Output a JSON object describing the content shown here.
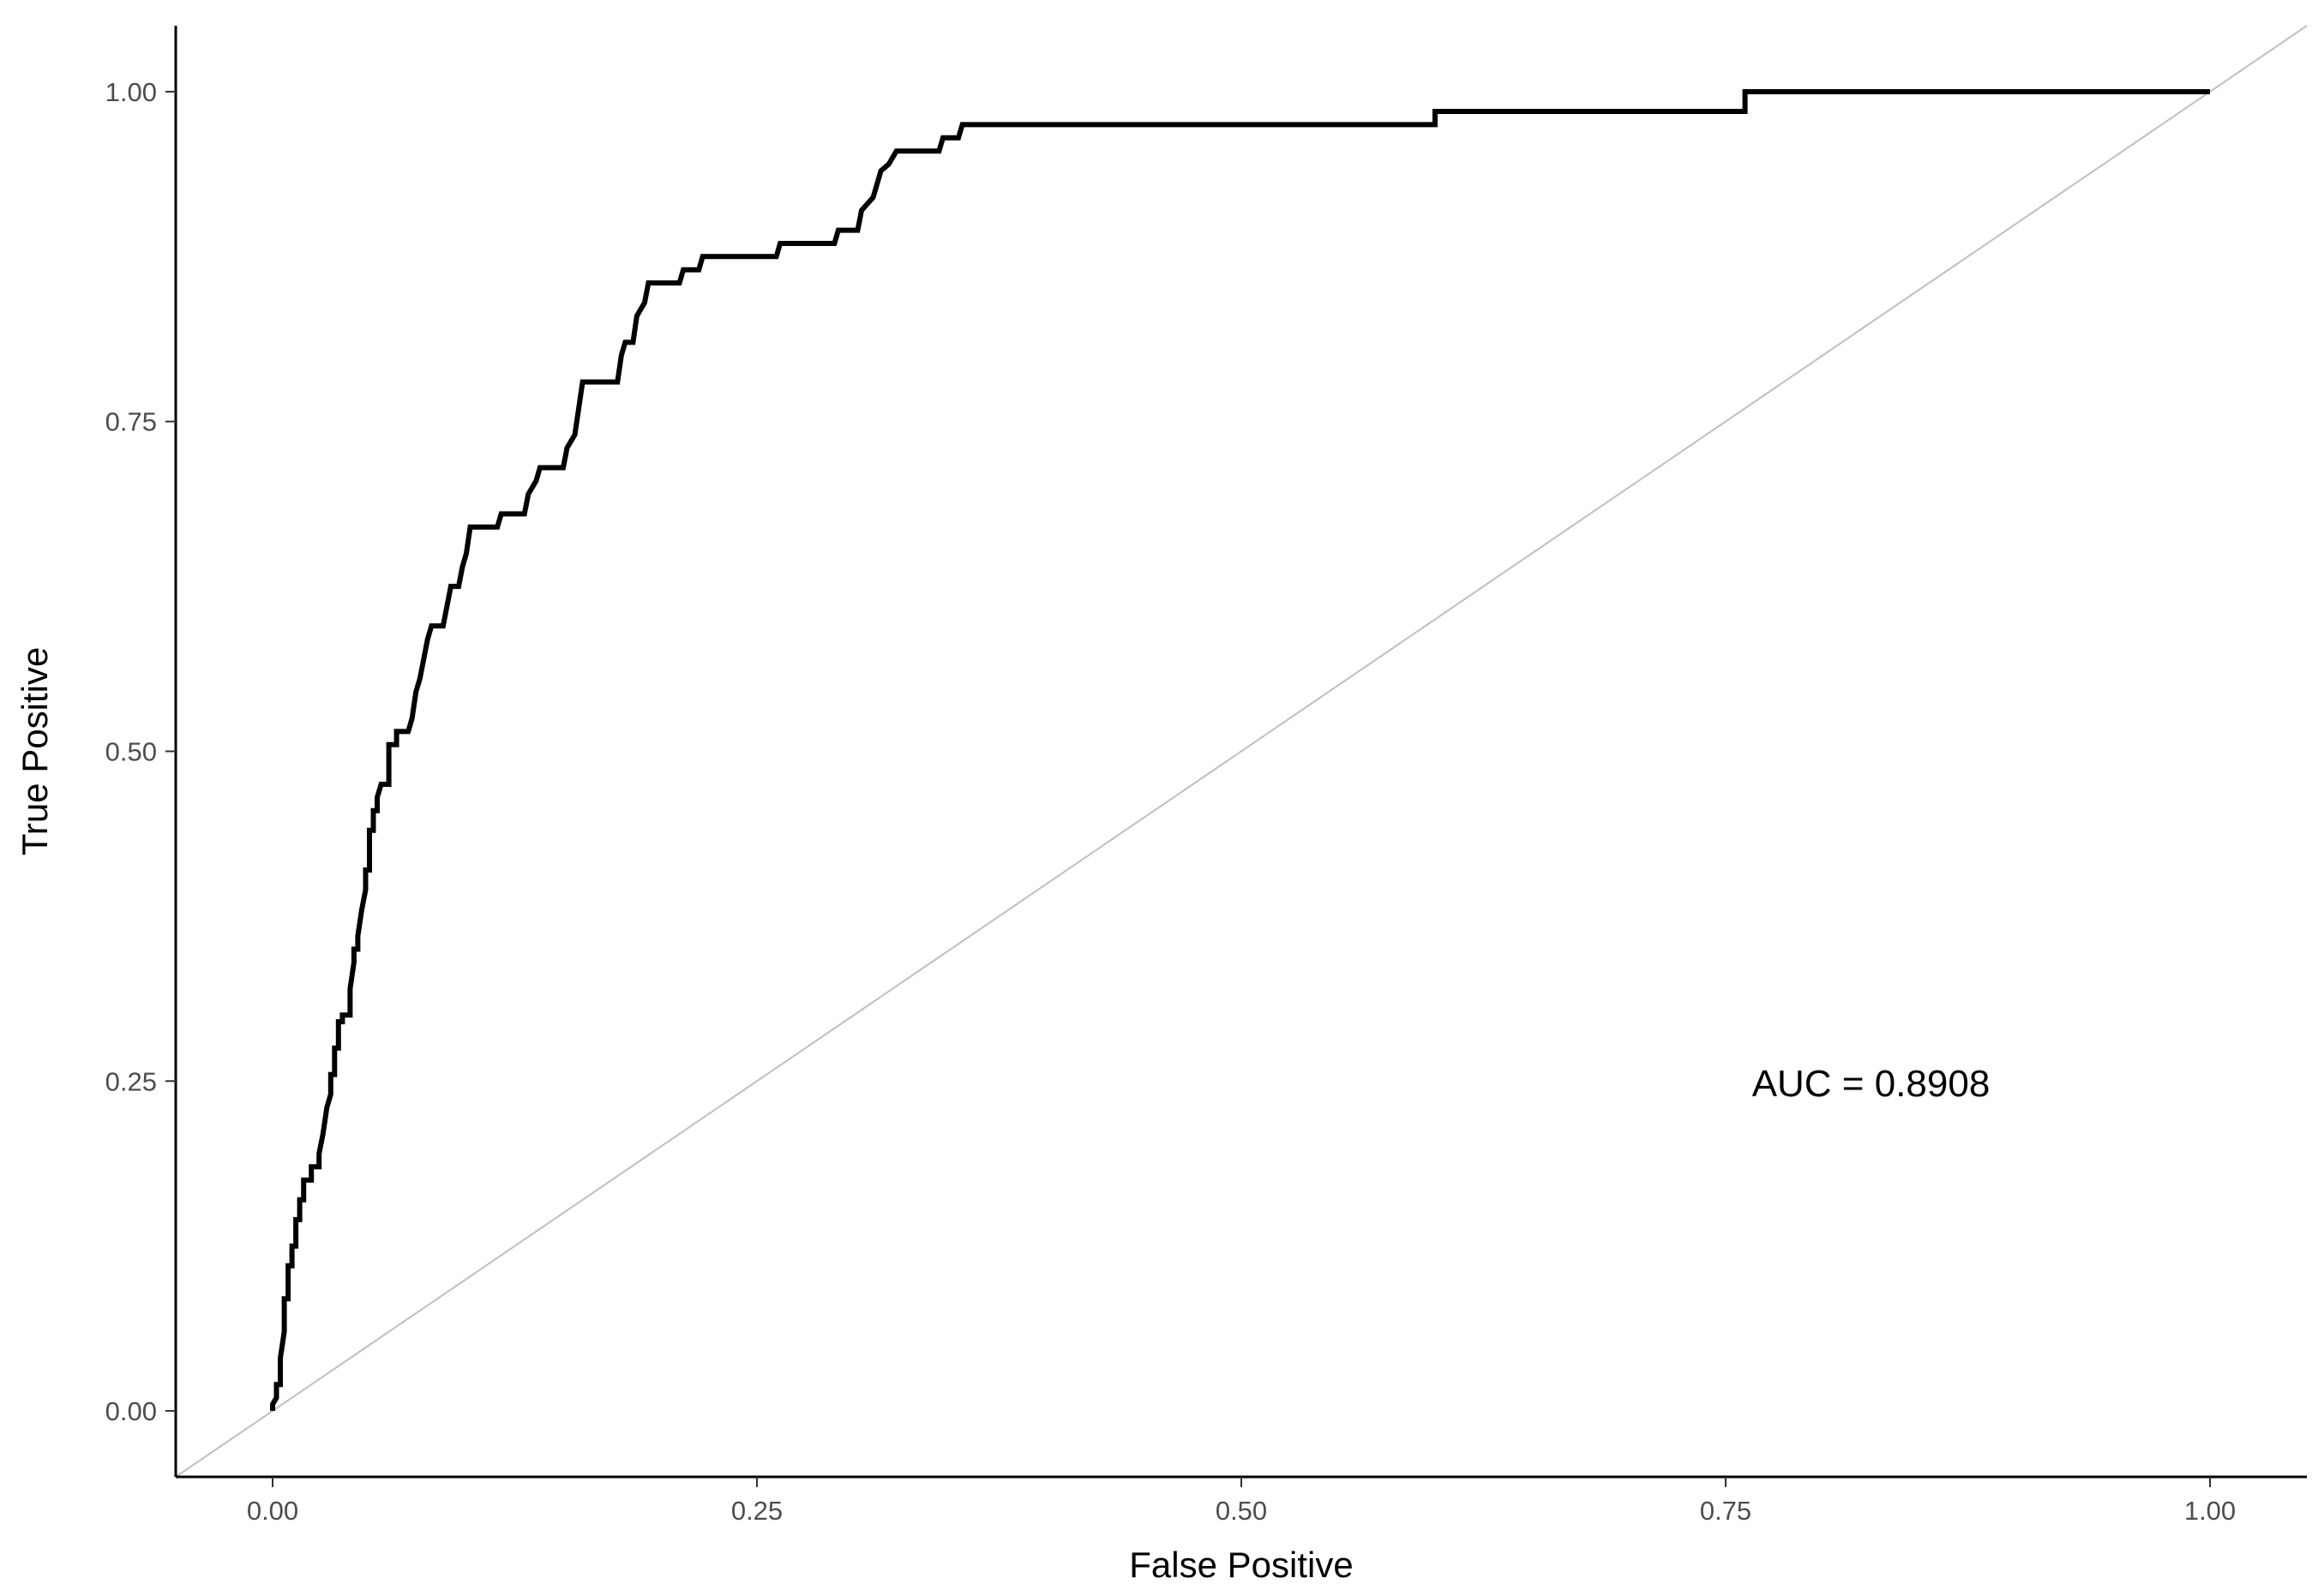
{
  "chart_data": {
    "type": "line",
    "title": "",
    "xlabel": "False Positive",
    "ylabel": "True Positive",
    "xlim": [
      -0.05,
      1.05
    ],
    "ylim": [
      -0.05,
      1.05
    ],
    "x_ticks": [
      {
        "value": 0,
        "label": "0.00"
      },
      {
        "value": 0.25,
        "label": "0.25"
      },
      {
        "value": 0.5,
        "label": "0.50"
      },
      {
        "value": 0.75,
        "label": "0.75"
      },
      {
        "value": 1,
        "label": "1.00"
      }
    ],
    "y_ticks": [
      {
        "value": 0,
        "label": "0.00"
      },
      {
        "value": 0.25,
        "label": "0.25"
      },
      {
        "value": 0.5,
        "label": "0.50"
      },
      {
        "value": 0.75,
        "label": "0.75"
      },
      {
        "value": 1,
        "label": "1.00"
      }
    ],
    "grid": false,
    "legend": "none",
    "series": [
      {
        "color": "#000000",
        "points": [
          [
            0.0,
            0.0
          ],
          [
            0.0,
            0.005
          ],
          [
            0.002,
            0.01
          ],
          [
            0.002,
            0.02
          ],
          [
            0.004,
            0.02
          ],
          [
            0.004,
            0.04
          ],
          [
            0.006,
            0.06
          ],
          [
            0.006,
            0.085
          ],
          [
            0.008,
            0.085
          ],
          [
            0.008,
            0.11
          ],
          [
            0.01,
            0.11
          ],
          [
            0.01,
            0.125
          ],
          [
            0.012,
            0.125
          ],
          [
            0.012,
            0.145
          ],
          [
            0.014,
            0.145
          ],
          [
            0.014,
            0.16
          ],
          [
            0.016,
            0.16
          ],
          [
            0.016,
            0.175
          ],
          [
            0.02,
            0.175
          ],
          [
            0.02,
            0.185
          ],
          [
            0.024,
            0.185
          ],
          [
            0.024,
            0.195
          ],
          [
            0.026,
            0.21
          ],
          [
            0.028,
            0.23
          ],
          [
            0.03,
            0.24
          ],
          [
            0.03,
            0.255
          ],
          [
            0.032,
            0.255
          ],
          [
            0.032,
            0.275
          ],
          [
            0.034,
            0.275
          ],
          [
            0.034,
            0.295
          ],
          [
            0.036,
            0.295
          ],
          [
            0.036,
            0.3
          ],
          [
            0.04,
            0.3
          ],
          [
            0.04,
            0.32
          ],
          [
            0.042,
            0.34
          ],
          [
            0.042,
            0.35
          ],
          [
            0.044,
            0.35
          ],
          [
            0.044,
            0.36
          ],
          [
            0.046,
            0.38
          ],
          [
            0.048,
            0.395
          ],
          [
            0.048,
            0.41
          ],
          [
            0.05,
            0.41
          ],
          [
            0.05,
            0.44
          ],
          [
            0.052,
            0.44
          ],
          [
            0.052,
            0.455
          ],
          [
            0.054,
            0.455
          ],
          [
            0.054,
            0.465
          ],
          [
            0.056,
            0.475
          ],
          [
            0.06,
            0.475
          ],
          [
            0.06,
            0.505
          ],
          [
            0.064,
            0.505
          ],
          [
            0.064,
            0.515
          ],
          [
            0.07,
            0.515
          ],
          [
            0.072,
            0.525
          ],
          [
            0.074,
            0.545
          ],
          [
            0.076,
            0.555
          ],
          [
            0.078,
            0.57
          ],
          [
            0.08,
            0.585
          ],
          [
            0.082,
            0.595
          ],
          [
            0.088,
            0.595
          ],
          [
            0.09,
            0.61
          ],
          [
            0.092,
            0.625
          ],
          [
            0.096,
            0.625
          ],
          [
            0.098,
            0.64
          ],
          [
            0.1,
            0.65
          ],
          [
            0.102,
            0.67
          ],
          [
            0.116,
            0.67
          ],
          [
            0.118,
            0.68
          ],
          [
            0.13,
            0.68
          ],
          [
            0.132,
            0.695
          ],
          [
            0.136,
            0.705
          ],
          [
            0.138,
            0.715
          ],
          [
            0.15,
            0.715
          ],
          [
            0.152,
            0.73
          ],
          [
            0.156,
            0.74
          ],
          [
            0.158,
            0.76
          ],
          [
            0.16,
            0.78
          ],
          [
            0.178,
            0.78
          ],
          [
            0.18,
            0.8
          ],
          [
            0.182,
            0.81
          ],
          [
            0.186,
            0.81
          ],
          [
            0.188,
            0.83
          ],
          [
            0.192,
            0.84
          ],
          [
            0.194,
            0.855
          ],
          [
            0.21,
            0.855
          ],
          [
            0.212,
            0.865
          ],
          [
            0.22,
            0.865
          ],
          [
            0.222,
            0.875
          ],
          [
            0.26,
            0.875
          ],
          [
            0.262,
            0.885
          ],
          [
            0.29,
            0.885
          ],
          [
            0.292,
            0.895
          ],
          [
            0.302,
            0.895
          ],
          [
            0.304,
            0.91
          ],
          [
            0.31,
            0.92
          ],
          [
            0.314,
            0.94
          ],
          [
            0.318,
            0.945
          ],
          [
            0.322,
            0.955
          ],
          [
            0.344,
            0.955
          ],
          [
            0.346,
            0.965
          ],
          [
            0.354,
            0.965
          ],
          [
            0.356,
            0.975
          ],
          [
            0.6,
            0.975
          ],
          [
            0.6,
            0.985
          ],
          [
            0.76,
            0.985
          ],
          [
            0.76,
            1.0
          ],
          [
            1.0,
            1.0
          ]
        ]
      }
    ],
    "reference_line": {
      "color": "#bfbfbf",
      "from": [
        -0.05,
        -0.05
      ],
      "to": [
        1.05,
        1.05
      ]
    },
    "annotations": [
      {
        "text": "AUC = 0.8908",
        "x": 0.825,
        "y": 0.246
      }
    ]
  }
}
